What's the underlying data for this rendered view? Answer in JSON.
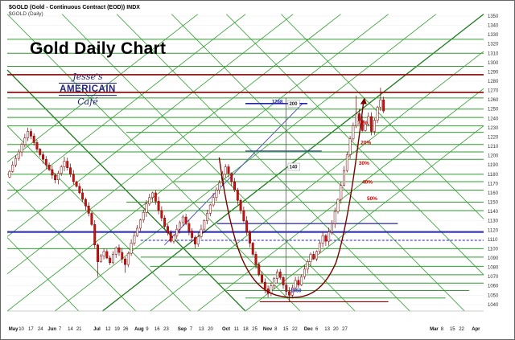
{
  "window": {
    "title_line1": "$GOLD (Gold - Continuous Contract (EOD)) INDX",
    "title_line2": "$GOLD (Daily)"
  },
  "header": {
    "chart_title": "Gold Daily Chart",
    "logo": {
      "top": "Jesse's",
      "middle": "AMERICAIN",
      "bottom": "Café"
    }
  },
  "chart_data": {
    "type": "candlestick",
    "title": "Gold Daily Chart",
    "symbol": "$GOLD",
    "period": "Daily",
    "y_axis": {
      "min": 1040,
      "max": 1350,
      "step": 10
    },
    "x_axis": {
      "labels": [
        {
          "t": "May",
          "x": 0.003
        },
        {
          "t": "10",
          "x": 0.024
        },
        {
          "t": "17",
          "x": 0.044
        },
        {
          "t": "24",
          "x": 0.064
        },
        {
          "t": "Jun",
          "x": 0.085
        },
        {
          "t": "7",
          "x": 0.108
        },
        {
          "t": "14",
          "x": 0.127
        },
        {
          "t": "21",
          "x": 0.145
        },
        {
          "t": "Jul",
          "x": 0.181
        },
        {
          "t": "12",
          "x": 0.206
        },
        {
          "t": "19",
          "x": 0.225
        },
        {
          "t": "26",
          "x": 0.243
        },
        {
          "t": "Aug",
          "x": 0.267
        },
        {
          "t": "9",
          "x": 0.291
        },
        {
          "t": "16",
          "x": 0.309
        },
        {
          "t": "23",
          "x": 0.328
        },
        {
          "t": "Sep",
          "x": 0.358
        },
        {
          "t": "7",
          "x": 0.383
        },
        {
          "t": "13",
          "x": 0.402
        },
        {
          "t": "20",
          "x": 0.421
        },
        {
          "t": "Oct",
          "x": 0.451
        },
        {
          "t": "11",
          "x": 0.476
        },
        {
          "t": "18",
          "x": 0.495
        },
        {
          "t": "25",
          "x": 0.514
        },
        {
          "t": "Nov",
          "x": 0.537
        },
        {
          "t": "8",
          "x": 0.561
        },
        {
          "t": "15",
          "x": 0.579
        },
        {
          "t": "22",
          "x": 0.598
        },
        {
          "t": "Dec",
          "x": 0.623
        },
        {
          "t": "6",
          "x": 0.647
        },
        {
          "t": "13",
          "x": 0.666
        },
        {
          "t": "20",
          "x": 0.684
        },
        {
          "t": "27",
          "x": 0.703
        },
        {
          "t": "Mar",
          "x": 0.887
        },
        {
          "t": "8",
          "x": 0.91
        },
        {
          "t": "15",
          "x": 0.929
        },
        {
          "t": "22",
          "x": 0.948
        },
        {
          "t": "Apr",
          "x": 0.975
        }
      ]
    },
    "candle_x_range": [
      0.005,
      0.79
    ],
    "closes": [
      1183,
      1190,
      1197,
      1204,
      1212,
      1219,
      1226,
      1221,
      1214,
      1207,
      1201,
      1196,
      1190,
      1185,
      1179,
      1174,
      1181,
      1188,
      1194,
      1187,
      1180,
      1172,
      1167,
      1160,
      1153,
      1146,
      1138,
      1126,
      1104,
      1086,
      1092,
      1097,
      1090,
      1085,
      1094,
      1101,
      1096,
      1089,
      1083,
      1095,
      1106,
      1114,
      1122,
      1131,
      1139,
      1148,
      1155,
      1160,
      1151,
      1141,
      1133,
      1124,
      1117,
      1108,
      1114,
      1121,
      1128,
      1134,
      1127,
      1119,
      1112,
      1105,
      1113,
      1121,
      1130,
      1138,
      1147,
      1155,
      1163,
      1171,
      1180,
      1188,
      1181,
      1172,
      1163,
      1152,
      1141,
      1130,
      1118,
      1106,
      1094,
      1083,
      1072,
      1064,
      1057,
      1052,
      1060,
      1068,
      1075,
      1069,
      1061,
      1054,
      1050,
      1058,
      1066,
      1061,
      1070,
      1078,
      1086,
      1094,
      1089,
      1097,
      1106,
      1114,
      1108,
      1118,
      1127,
      1140,
      1153,
      1168,
      1184,
      1201,
      1218,
      1232,
      1245,
      1238,
      1227,
      1234,
      1242,
      1226,
      1238,
      1252,
      1260,
      1248
    ],
    "wick_spikes": [
      {
        "i": 29,
        "l": 12
      },
      {
        "i": 38,
        "l": 6
      },
      {
        "i": 92,
        "l": 5
      },
      {
        "i": 114,
        "h": 16
      },
      {
        "i": 122,
        "h": 8
      }
    ],
    "horizontal_lines": [
      {
        "v": 1325,
        "x1": 0,
        "x2": 1,
        "c": "#2f9e2f",
        "w": 1
      },
      {
        "v": 1310,
        "x1": 0,
        "x2": 1,
        "c": "#2f9e2f",
        "w": 1
      },
      {
        "v": 1296,
        "x1": 0,
        "x2": 1,
        "c": "#2f9e2f",
        "w": 1
      },
      {
        "v": 1287,
        "x1": 0,
        "x2": 1,
        "c": "#8b0000",
        "w": 1.6
      },
      {
        "v": 1268,
        "x1": 0,
        "x2": 1,
        "c": "#8b0000",
        "w": 1.6
      },
      {
        "v": 1262,
        "x1": 0,
        "x2": 1,
        "c": "#2f9e2f",
        "w": 1
      },
      {
        "v": 1256,
        "x1": 0.5,
        "x2": 0.63,
        "c": "#2222aa",
        "w": 1.6
      },
      {
        "v": 1250,
        "x1": 0,
        "x2": 1,
        "c": "#2f9e2f",
        "w": 1
      },
      {
        "v": 1241,
        "x1": 0,
        "x2": 1,
        "c": "#2f9e2f",
        "w": 1
      },
      {
        "v": 1232,
        "x1": 0,
        "x2": 1,
        "c": "#2f9e2f",
        "w": 1
      },
      {
        "v": 1225,
        "x1": 0.25,
        "x2": 1,
        "c": "#2f9e2f",
        "w": 1
      },
      {
        "v": 1212,
        "x1": 0,
        "x2": 1,
        "c": "#2f9e2f",
        "w": 1
      },
      {
        "v": 1205,
        "x1": 0.5,
        "x2": 0.66,
        "c": "#2222aa",
        "w": 1
      },
      {
        "v": 1204,
        "x1": 0,
        "x2": 1,
        "c": "#2f9e2f",
        "w": 1
      },
      {
        "v": 1196,
        "x1": 0.3,
        "x2": 1,
        "c": "#2f9e2f",
        "w": 1
      },
      {
        "v": 1180,
        "x1": 0,
        "x2": 1,
        "c": "#2f9e2f",
        "w": 1
      },
      {
        "v": 1172,
        "x1": 0.35,
        "x2": 1,
        "c": "#2f9e2f",
        "w": 1
      },
      {
        "v": 1163,
        "x1": 0,
        "x2": 1,
        "c": "#2f9e2f",
        "w": 1
      },
      {
        "v": 1150,
        "x1": 0.25,
        "x2": 1,
        "c": "#2f9e2f",
        "w": 1
      },
      {
        "v": 1141,
        "x1": 0,
        "x2": 1,
        "c": "#2f9e2f",
        "w": 1
      },
      {
        "v": 1127,
        "x1": 0.44,
        "x2": 0.82,
        "c": "#2222aa",
        "w": 1.2
      },
      {
        "v": 1118,
        "x1": 0,
        "x2": 1,
        "c": "#2222aa",
        "w": 2
      },
      {
        "v": 1109,
        "x1": 0.28,
        "x2": 1,
        "c": "#2222aa",
        "w": 1,
        "dash": "3,2"
      },
      {
        "v": 1100,
        "x1": 0,
        "x2": 1,
        "c": "#2f9e2f",
        "w": 1
      },
      {
        "v": 1091,
        "x1": 0.28,
        "x2": 1,
        "c": "#2f9e2f",
        "w": 1
      },
      {
        "v": 1081,
        "x1": 0.3,
        "x2": 1,
        "c": "#2f9e2f",
        "w": 1
      },
      {
        "v": 1072,
        "x1": 0.36,
        "x2": 1,
        "c": "#2f9e2f",
        "w": 1
      },
      {
        "v": 1063,
        "x1": 0.44,
        "x2": 1,
        "c": "#2f9e2f",
        "w": 1
      },
      {
        "v": 1055,
        "x1": 0.46,
        "x2": 0.97,
        "c": "#2f9e2f",
        "w": 1
      },
      {
        "v": 1047,
        "x1": 0.5,
        "x2": 0.92,
        "c": "#2f9e2f",
        "w": 1
      },
      {
        "v": 1043,
        "x1": 0.53,
        "x2": 0.8,
        "c": "#8b0000",
        "w": 1.2
      }
    ],
    "diagonal_lines": [
      {
        "x1": 0,
        "v1": 1033,
        "x2": 0.8,
        "v2": 1352,
        "c": "#2f9e2f",
        "w": 0.8
      },
      {
        "x1": 0.1,
        "v1": 1033,
        "x2": 0.9,
        "v2": 1352,
        "c": "#2f9e2f",
        "w": 0.8
      },
      {
        "x1": 0.2,
        "v1": 1033,
        "x2": 1,
        "v2": 1352,
        "c": "#1d7a1d",
        "w": 1.3
      },
      {
        "x1": 0.3,
        "v1": 1033,
        "x2": 1,
        "v2": 1312,
        "c": "#2f9e2f",
        "w": 0.8
      },
      {
        "x1": 0.4,
        "v1": 1033,
        "x2": 1,
        "v2": 1272,
        "c": "#2f9e2f",
        "w": 0.8
      },
      {
        "x1": 0.5,
        "v1": 1033,
        "x2": 1,
        "v2": 1232,
        "c": "#2f9e2f",
        "w": 0.8
      },
      {
        "x1": 0,
        "v1": 1073,
        "x2": 0.7,
        "v2": 1352,
        "c": "#2f9e2f",
        "w": 0.8
      },
      {
        "x1": 0,
        "v1": 1113,
        "x2": 0.6,
        "v2": 1352,
        "c": "#2f9e2f",
        "w": 0.8
      },
      {
        "x1": 0,
        "v1": 1153,
        "x2": 0.5,
        "v2": 1352,
        "c": "#2f9e2f",
        "w": 0.8
      },
      {
        "x1": 0,
        "v1": 1193,
        "x2": 0.4,
        "v2": 1352,
        "c": "#2f9e2f",
        "w": 0.8
      },
      {
        "x1": 0,
        "v1": 1352,
        "x2": 0.615,
        "v2": 1033,
        "c": "#2f9e2f",
        "w": 0.8
      },
      {
        "x1": 0.115,
        "v1": 1352,
        "x2": 0.73,
        "v2": 1033,
        "c": "#2f9e2f",
        "w": 0.8
      },
      {
        "x1": 0.23,
        "v1": 1352,
        "x2": 0.845,
        "v2": 1033,
        "c": "#2f9e2f",
        "w": 0.8
      },
      {
        "x1": 0.345,
        "v1": 1352,
        "x2": 0.96,
        "v2": 1033,
        "c": "#2f9e2f",
        "w": 0.8
      },
      {
        "x1": 0.46,
        "v1": 1352,
        "x2": 1,
        "v2": 1072,
        "c": "#2f9e2f",
        "w": 0.8
      },
      {
        "x1": 0.575,
        "v1": 1352,
        "x2": 1,
        "v2": 1132,
        "c": "#2f9e2f",
        "w": 0.8
      },
      {
        "x1": 0,
        "v1": 1292,
        "x2": 0.5,
        "v2": 1033,
        "c": "#1d7a1d",
        "w": 1.3
      },
      {
        "x1": 0,
        "v1": 1232,
        "x2": 0.385,
        "v2": 1033,
        "c": "#2f9e2f",
        "w": 0.8
      },
      {
        "x1": 0,
        "v1": 1172,
        "x2": 0.27,
        "v2": 1033,
        "c": "#2f9e2f",
        "w": 0.8
      },
      {
        "x1": 0,
        "v1": 1112,
        "x2": 0.15,
        "v2": 1033,
        "c": "#2f9e2f",
        "w": 0.8
      },
      {
        "x1": 0.33,
        "v1": 1104,
        "x2": 0.62,
        "v2": 1256,
        "c": "#4444bb",
        "w": 0.9
      }
    ],
    "cup": {
      "color": "#7a0000",
      "path": [
        [
          0.445,
          1198
        ],
        [
          0.47,
          1105
        ],
        [
          0.5,
          1060
        ],
        [
          0.565,
          1050
        ],
        [
          0.62,
          1043
        ],
        [
          0.66,
          1050
        ],
        [
          0.69,
          1085
        ],
        [
          0.715,
          1125
        ],
        [
          0.732,
          1192
        ],
        [
          0.748,
          1258
        ]
      ]
    },
    "measure_line": {
      "x": 0.585,
      "v1": 1050,
      "v2": 1262,
      "labels": [
        {
          "t": "1268",
          "x": 0.578,
          "v": 1258,
          "c": "#2222bb",
          "anchor": "end"
        },
        {
          "t": "200",
          "x": 0.592,
          "v": 1256,
          "c": "#222222",
          "box": true
        },
        {
          "t": "140",
          "x": 0.592,
          "v": 1188,
          "c": "#222222",
          "box": true
        },
        {
          "t": "1050",
          "x": 0.595,
          "v": 1055,
          "c": "#2222bb"
        }
      ]
    },
    "percent_labels": [
      {
        "t": "10%",
        "x": 0.735,
        "v": 1234
      },
      {
        "t": "20%",
        "x": 0.742,
        "v": 1212
      },
      {
        "t": "30%",
        "x": 0.738,
        "v": 1190
      },
      {
        "t": "40%",
        "x": 0.745,
        "v": 1170
      },
      {
        "t": "50%",
        "x": 0.755,
        "v": 1152
      }
    ],
    "colors": {
      "up_candle": "#ffffff",
      "down_candle": "#cc1111",
      "candle_outline": "#7a0000",
      "green_line": "#2f9e2f",
      "maroon_line": "#8b0000",
      "blue_line": "#2222aa",
      "percent_label": "#cc0000",
      "measure_label_blue": "#2222bb"
    }
  }
}
